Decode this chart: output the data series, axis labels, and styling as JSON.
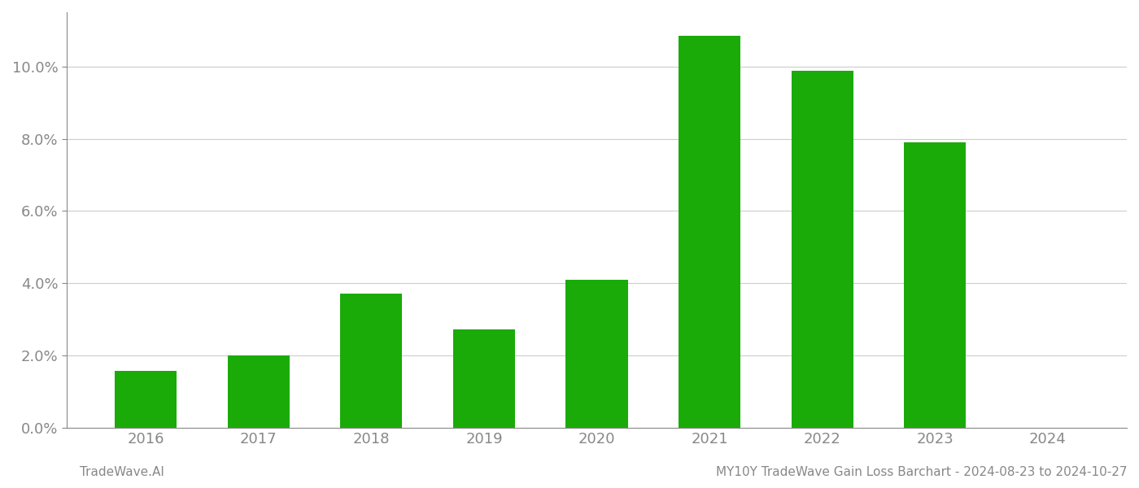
{
  "categories": [
    "2016",
    "2017",
    "2018",
    "2019",
    "2020",
    "2021",
    "2022",
    "2023",
    "2024"
  ],
  "values": [
    0.0157,
    0.0201,
    0.0372,
    0.0272,
    0.041,
    0.1085,
    0.0988,
    0.0791,
    0.0
  ],
  "bar_color": "#1aab08",
  "background_color": "#ffffff",
  "grid_color": "#cccccc",
  "axis_color": "#888888",
  "tick_label_color": "#888888",
  "ylim": [
    0,
    0.115
  ],
  "yticks": [
    0.0,
    0.02,
    0.04,
    0.06,
    0.08,
    0.1
  ],
  "ytick_labels": [
    "0.0%",
    "2.0%",
    "4.0%",
    "6.0%",
    "8.0%",
    "10.0%"
  ],
  "footer_left": "TradeWave.AI",
  "footer_right": "MY10Y TradeWave Gain Loss Barchart - 2024-08-23 to 2024-10-27",
  "footer_color": "#888888",
  "footer_fontsize": 11,
  "bar_width": 0.55
}
